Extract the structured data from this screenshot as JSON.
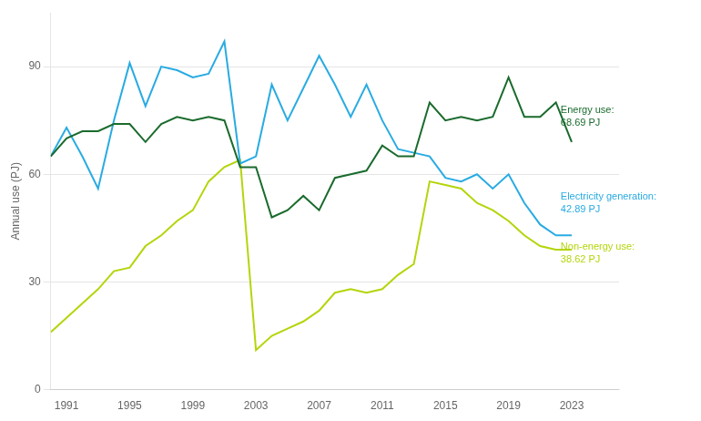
{
  "chart_data": {
    "type": "line",
    "y_label": "Annual use (PJ)",
    "x": [
      1990,
      1991,
      1992,
      1993,
      1994,
      1995,
      1996,
      1997,
      1998,
      1999,
      2000,
      2001,
      2002,
      2003,
      2004,
      2005,
      2006,
      2007,
      2008,
      2009,
      2010,
      2011,
      2012,
      2013,
      2014,
      2015,
      2016,
      2017,
      2018,
      2019,
      2020,
      2021,
      2022,
      2023
    ],
    "series": [
      {
        "color": "#1a6b2d",
        "values": [
          65,
          70,
          72,
          72,
          74,
          74,
          69,
          74,
          76,
          75,
          76,
          75,
          62,
          62,
          48,
          50,
          54,
          50,
          59,
          60,
          61,
          68,
          65,
          65,
          80,
          75,
          76,
          75,
          76,
          87,
          76,
          76,
          80,
          69
        ]
      },
      {
        "color": "#29abe2",
        "values": [
          65,
          73,
          65,
          56,
          75,
          91,
          79,
          90,
          89,
          87,
          88,
          97,
          63,
          65,
          85,
          75,
          84,
          93,
          85,
          76,
          85,
          75,
          67,
          66,
          65,
          59,
          58,
          60,
          56,
          60,
          52,
          46,
          43,
          43
        ]
      },
      {
        "color": "#b5d40a",
        "values": [
          16,
          20,
          24,
          28,
          33,
          34,
          40,
          43,
          47,
          50,
          58,
          62,
          64,
          11,
          15,
          17,
          19,
          22,
          27,
          28,
          27,
          28,
          32,
          35,
          58,
          57,
          56,
          52,
          50,
          47,
          43,
          40,
          39,
          39
        ]
      }
    ],
    "xlim": [
      1990,
      2026
    ],
    "xticks": [
      1991,
      1995,
      1999,
      2003,
      2007,
      2011,
      2015,
      2019,
      2023
    ],
    "ylim": [
      0,
      105
    ],
    "yticks": [
      0,
      30,
      60,
      90
    ],
    "grid": true,
    "annotations": [
      {
        "text": "Energy use:\n68.69 PJ",
        "x": 2022.3,
        "y": 76,
        "color": "#1a6b2d"
      },
      {
        "text": "Electricity generation:\n42.89 PJ",
        "x": 2022.3,
        "y": 52,
        "color": "#29abe2"
      },
      {
        "text": "Non-energy use:\n38.62 PJ",
        "x": 2022.3,
        "y": 38,
        "color": "#b5d40a"
      }
    ]
  }
}
